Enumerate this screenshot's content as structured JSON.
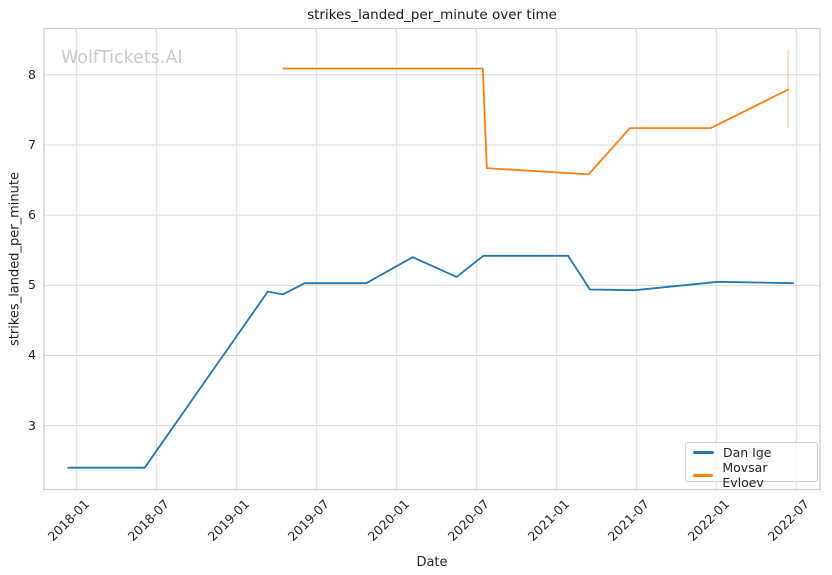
{
  "watermark": "WolfTickets.AI",
  "colors": {
    "dan_ige_line": "#1f77b4",
    "movsar_evloev_line": "#ff7f0e",
    "grid": "#dadada",
    "spine": "#cccccc",
    "text": "#262626",
    "watermark": "#cacaca"
  },
  "chart_data": {
    "type": "line",
    "title": "strikes_landed_per_minute over time",
    "xlabel": "Date",
    "ylabel": "strikes_landed_per_minute",
    "grid": true,
    "legend_position": "lower right",
    "x_tick_labels": [
      "2018-01",
      "2018-07",
      "2019-01",
      "2019-07",
      "2020-01",
      "2020-07",
      "2021-01",
      "2021-07",
      "2022-01",
      "2022-07"
    ],
    "y_ticks": [
      3,
      4,
      5,
      6,
      7,
      8
    ],
    "ylim": [
      2.09,
      8.66
    ],
    "xlim_months_from_2018_01": [
      -2.42,
      55.78
    ],
    "series": [
      {
        "name": "Dan Ige",
        "color": "#1f77b4",
        "points": [
          [
            "2017-12-13",
            2.4
          ],
          [
            "2018-06-05",
            2.4
          ],
          [
            "2019-03-12",
            4.91
          ],
          [
            "2019-04-16",
            4.87
          ],
          [
            "2019-06-05",
            5.03
          ],
          [
            "2019-10-24",
            5.03
          ],
          [
            "2020-02-08",
            5.4
          ],
          [
            "2020-05-17",
            5.12
          ],
          [
            "2020-07-17",
            5.42
          ],
          [
            "2021-01-28",
            5.42
          ],
          [
            "2021-03-17",
            4.94
          ],
          [
            "2021-06-28",
            4.93
          ],
          [
            "2022-01-05",
            5.05
          ],
          [
            "2022-06-24",
            5.03
          ]
        ]
      },
      {
        "name": "Movsar Evloev",
        "color": "#ff7f0e",
        "points": [
          [
            "2019-04-17",
            8.09
          ],
          [
            "2020-07-16",
            8.09
          ],
          [
            "2020-07-25",
            6.67
          ],
          [
            "2021-03-14",
            6.58
          ],
          [
            "2021-06-17",
            7.24
          ],
          [
            "2021-12-19",
            7.24
          ],
          [
            "2022-06-13",
            7.79
          ]
        ]
      }
    ],
    "end_marker": {
      "date": "2022-06-13",
      "value_from": 7.24,
      "value_to": 8.36,
      "color": "#ff7f0e",
      "opacity": 0.32
    }
  }
}
